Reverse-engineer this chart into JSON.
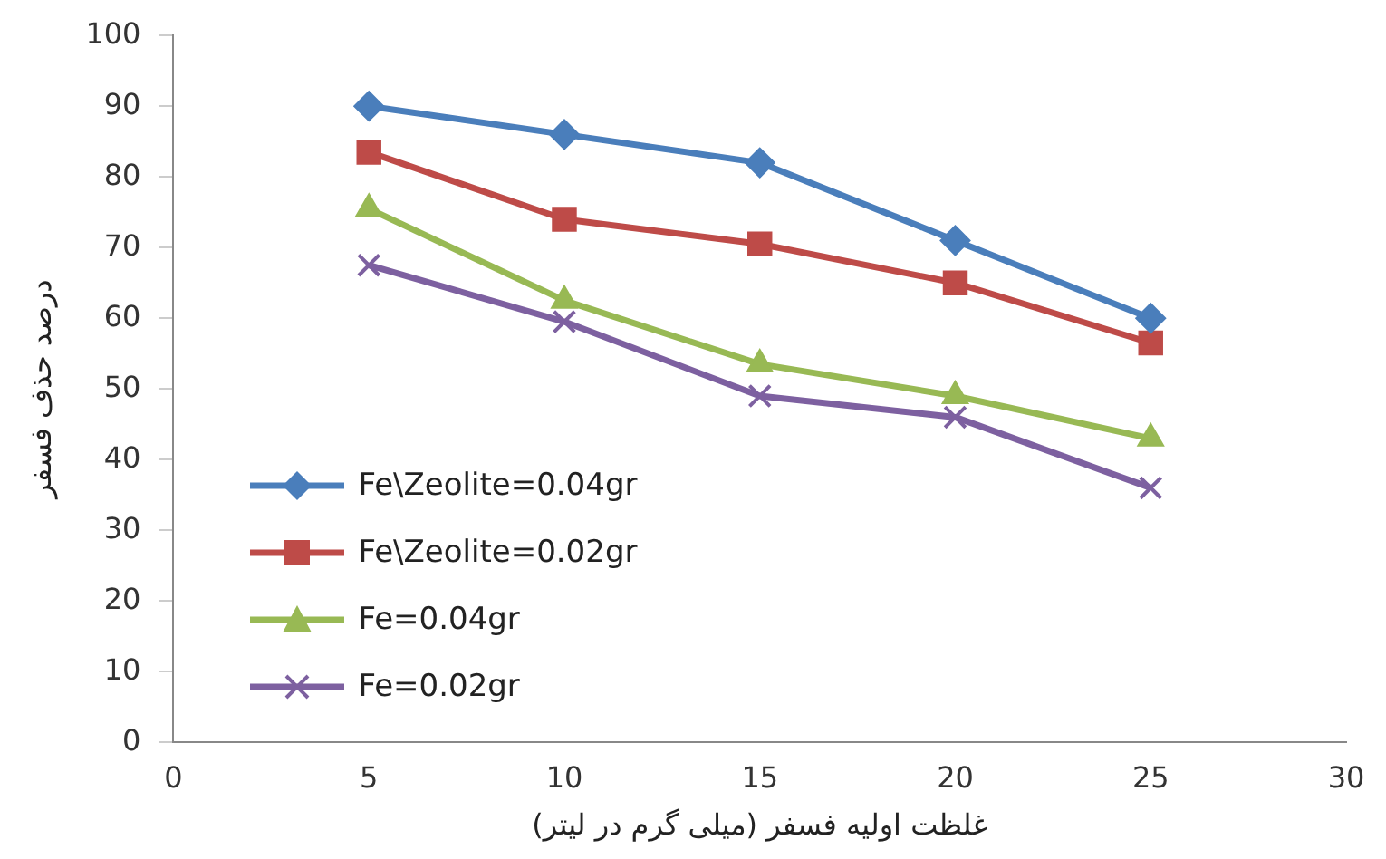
{
  "chart_data": {
    "type": "line",
    "xlabel": "غلظت اولیه فسفر (میلی گرم در لیتر)",
    "ylabel": "درصد حذف فسفر",
    "x": [
      5,
      10,
      15,
      20,
      25
    ],
    "xlim": [
      0,
      30
    ],
    "xticks": [
      0,
      5,
      10,
      15,
      20,
      25,
      30
    ],
    "ylim": [
      0,
      100
    ],
    "yticks": [
      0,
      10,
      20,
      30,
      40,
      50,
      60,
      70,
      80,
      90,
      100
    ],
    "grid": false,
    "legend": "bottom left",
    "line_style": "solid",
    "series": [
      {
        "name": "Fe\\Zeolite=0.04gr",
        "color": "#4a7ebb",
        "marker": "diamond",
        "values": [
          90,
          86,
          82,
          71,
          60
        ]
      },
      {
        "name": "Fe\\Zeolite=0.02gr",
        "color": "#be4b48",
        "marker": "square",
        "values": [
          83.5,
          74,
          70.5,
          65,
          56.5
        ]
      },
      {
        "name": "Fe=0.04gr",
        "color": "#98b954",
        "marker": "triangle",
        "values": [
          75.5,
          62.5,
          53.5,
          49,
          43
        ]
      },
      {
        "name": "Fe=0.02gr",
        "color": "#7d60a0",
        "marker": "cross",
        "values": [
          67.5,
          59.5,
          49,
          46,
          36
        ]
      }
    ]
  }
}
